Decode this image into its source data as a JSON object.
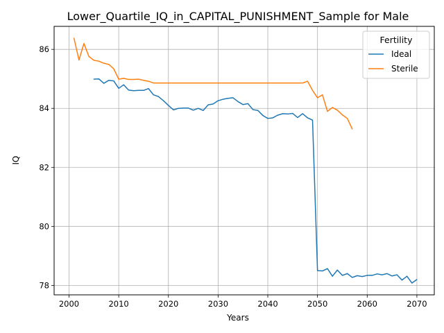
{
  "chart_data": {
    "type": "line",
    "title": "Lower_Quartile_IQ_in_CAPITAL_PUNISHMENT_Sample for Male",
    "xlabel": "Years",
    "ylabel": "IQ",
    "xlim": [
      1997,
      2073.5
    ],
    "ylim": [
      77.68,
      86.78
    ],
    "xticks": [
      2000,
      2010,
      2020,
      2030,
      2040,
      2050,
      2060,
      2070
    ],
    "yticks": [
      78,
      80,
      82,
      84,
      86
    ],
    "grid": true,
    "legend": {
      "title": "Fertility",
      "placement": "top-right"
    },
    "series": [
      {
        "name": "Ideal",
        "color": "#1f77b4",
        "x": [
          2005,
          2006,
          2007,
          2008,
          2009,
          2010,
          2011,
          2012,
          2013,
          2014,
          2015,
          2016,
          2017,
          2018,
          2019,
          2020,
          2021,
          2022,
          2023,
          2024,
          2025,
          2026,
          2027,
          2028,
          2029,
          2030,
          2031,
          2032,
          2033,
          2034,
          2035,
          2036,
          2037,
          2038,
          2039,
          2040,
          2041,
          2042,
          2043,
          2044,
          2045,
          2046,
          2047,
          2048,
          2049,
          2050,
          2051,
          2052,
          2053,
          2054,
          2055,
          2056,
          2057,
          2058,
          2059,
          2060,
          2061,
          2062,
          2063,
          2064,
          2065,
          2066,
          2067,
          2068,
          2069,
          2070
        ],
        "y": [
          84.99,
          85.0,
          84.85,
          84.95,
          84.93,
          84.68,
          84.8,
          84.62,
          84.6,
          84.61,
          84.61,
          84.67,
          84.46,
          84.4,
          84.26,
          84.1,
          83.95,
          84.0,
          84.01,
          84.01,
          83.94,
          84.0,
          83.93,
          84.12,
          84.15,
          84.26,
          84.31,
          84.34,
          84.36,
          84.23,
          84.13,
          84.16,
          83.96,
          83.93,
          83.76,
          83.66,
          83.68,
          83.77,
          83.82,
          83.81,
          83.83,
          83.69,
          83.82,
          83.68,
          83.6,
          78.5,
          78.49,
          78.57,
          78.31,
          78.52,
          78.34,
          78.4,
          78.27,
          78.33,
          78.3,
          78.34,
          78.34,
          78.39,
          78.36,
          78.4,
          78.32,
          78.36,
          78.18,
          78.31,
          78.08,
          78.2
        ]
      },
      {
        "name": "Sterile",
        "color": "#ff7f0e",
        "x": [
          2001,
          2002,
          2003,
          2004,
          2005,
          2006,
          2007,
          2008,
          2009,
          2010,
          2011,
          2012,
          2013,
          2014,
          2015,
          2016,
          2017,
          2018,
          2019,
          2020,
          2021,
          2022,
          2023,
          2024,
          2025,
          2026,
          2027,
          2028,
          2029,
          2030,
          2031,
          2032,
          2033,
          2034,
          2035,
          2036,
          2037,
          2038,
          2039,
          2040,
          2041,
          2042,
          2043,
          2044,
          2045,
          2046,
          2047,
          2048,
          2049,
          2050,
          2051,
          2052,
          2053,
          2054,
          2055,
          2056,
          2057
        ],
        "y": [
          86.38,
          85.64,
          86.2,
          85.76,
          85.63,
          85.6,
          85.53,
          85.49,
          85.34,
          84.99,
          85.02,
          84.98,
          84.98,
          84.99,
          84.95,
          84.92,
          84.86,
          84.86,
          84.86,
          84.86,
          84.86,
          84.86,
          84.86,
          84.86,
          84.86,
          84.86,
          84.86,
          84.86,
          84.86,
          84.86,
          84.86,
          84.86,
          84.86,
          84.86,
          84.86,
          84.86,
          84.86,
          84.86,
          84.86,
          84.86,
          84.86,
          84.86,
          84.86,
          84.86,
          84.86,
          84.86,
          84.86,
          84.92,
          84.61,
          84.36,
          84.46,
          83.9,
          84.03,
          83.94,
          83.78,
          83.66,
          83.3
        ]
      }
    ]
  }
}
